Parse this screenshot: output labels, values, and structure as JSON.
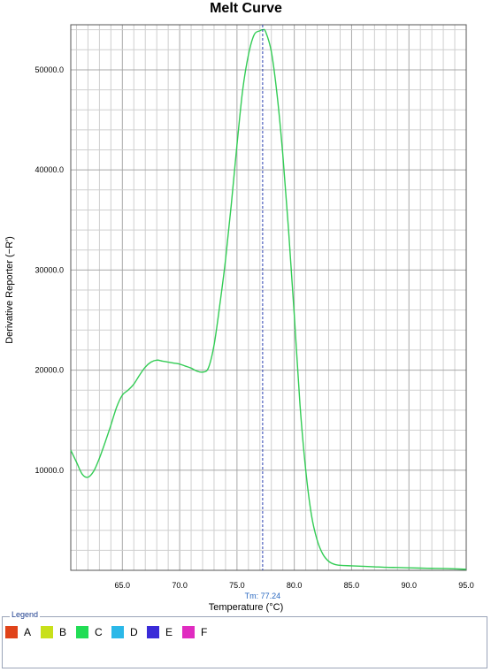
{
  "chart_data": {
    "type": "line",
    "title": "Melt Curve",
    "xlabel": "Temperature (°C)",
    "ylabel": "Derivative Reporter (−R')",
    "xlim": [
      60.5,
      95.0
    ],
    "ylim": [
      0,
      54500
    ],
    "x_ticks": [
      65.0,
      70.0,
      75.0,
      80.0,
      85.0,
      90.0,
      95.0
    ],
    "x_tick_labels": [
      "65.0",
      "70.0",
      "75.0",
      "80.0",
      "85.0",
      "90.0",
      "95.0"
    ],
    "y_ticks": [
      10000,
      20000,
      30000,
      40000,
      50000
    ],
    "y_tick_labels": [
      "10000.0",
      "20000.0",
      "30000.0",
      "40000.0",
      "50000.0"
    ],
    "grid": true,
    "tm": {
      "value": 77.24,
      "label": "Tm: 77.24"
    },
    "series": [
      {
        "color": "#33cc55",
        "x": [
          60.5,
          61.0,
          61.5,
          62.0,
          62.5,
          63.0,
          63.5,
          64.0,
          64.5,
          65.0,
          65.5,
          66.0,
          66.5,
          67.0,
          67.5,
          68.0,
          68.5,
          69.0,
          69.5,
          70.0,
          70.5,
          71.0,
          71.5,
          72.0,
          72.5,
          73.0,
          73.5,
          74.0,
          74.5,
          75.0,
          75.5,
          76.0,
          76.5,
          77.0,
          77.24,
          77.5,
          78.0,
          78.5,
          79.0,
          79.5,
          80.0,
          80.5,
          81.0,
          81.5,
          82.0,
          82.5,
          83.0,
          83.5,
          84.0,
          85.0,
          86.0,
          87.0,
          88.0,
          89.0,
          90.0,
          91.0,
          92.0,
          93.0,
          94.0,
          95.0
        ],
        "y": [
          12000,
          10800,
          9600,
          9300,
          9900,
          11200,
          12800,
          14500,
          16300,
          17500,
          18000,
          18600,
          19500,
          20300,
          20800,
          21000,
          20900,
          20800,
          20700,
          20600,
          20400,
          20200,
          19900,
          19800,
          20200,
          22500,
          26500,
          31000,
          36500,
          42500,
          48000,
          51500,
          53500,
          53900,
          54000,
          53800,
          51800,
          47500,
          41500,
          34000,
          25500,
          16500,
          10000,
          5500,
          3000,
          1600,
          900,
          600,
          500,
          450,
          400,
          350,
          300,
          280,
          250,
          220,
          200,
          180,
          150,
          100
        ]
      }
    ],
    "legend": [
      {
        "label": "A",
        "color": "#e0431a"
      },
      {
        "label": "B",
        "color": "#c8e01a"
      },
      {
        "label": "C",
        "color": "#22dd55"
      },
      {
        "label": "D",
        "color": "#2bb8e8"
      },
      {
        "label": "E",
        "color": "#3a2bd8"
      },
      {
        "label": "F",
        "color": "#e02bc0"
      }
    ]
  },
  "legend_title": "Legend"
}
